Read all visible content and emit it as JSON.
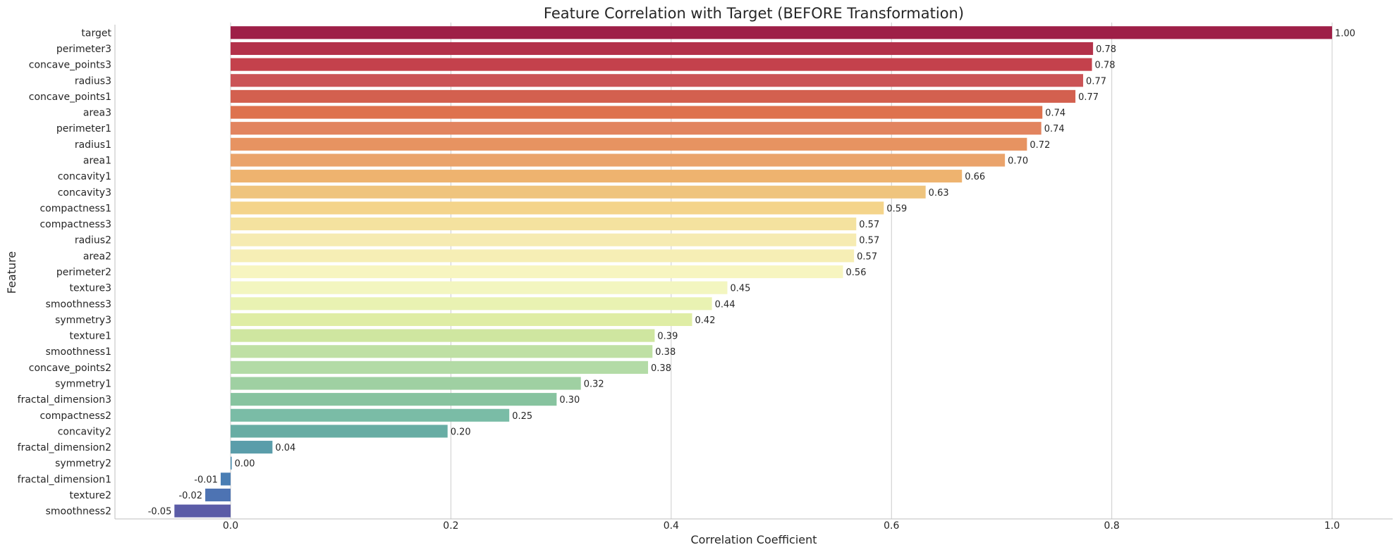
{
  "chart_data": {
    "type": "bar",
    "orientation": "horizontal",
    "title": "Feature Correlation with Target (BEFORE Transformation)",
    "xlabel": "Correlation Coefficient",
    "ylabel": "Feature",
    "xlim": [
      -0.105,
      1.055
    ],
    "xticks": [
      0.0,
      0.2,
      0.4,
      0.6,
      0.8,
      1.0
    ],
    "xtick_labels": [
      "0.0",
      "0.2",
      "0.4",
      "0.6",
      "0.8",
      "1.0"
    ],
    "grid": true,
    "categories": [
      "target",
      "perimeter3",
      "concave_points3",
      "radius3",
      "concave_points1",
      "area3",
      "perimeter1",
      "radius1",
      "area1",
      "concavity1",
      "concavity3",
      "compactness1",
      "compactness3",
      "radius2",
      "area2",
      "perimeter2",
      "texture3",
      "smoothness3",
      "symmetry3",
      "texture1",
      "smoothness1",
      "concave_points2",
      "symmetry1",
      "fractal_dimension3",
      "compactness2",
      "concavity2",
      "fractal_dimension2",
      "symmetry2",
      "fractal_dimension1",
      "texture2",
      "smoothness2"
    ],
    "values": [
      1.0,
      0.783,
      0.782,
      0.774,
      0.767,
      0.737,
      0.736,
      0.723,
      0.703,
      0.664,
      0.631,
      0.593,
      0.568,
      0.568,
      0.566,
      0.556,
      0.451,
      0.437,
      0.419,
      0.385,
      0.383,
      0.379,
      0.318,
      0.296,
      0.253,
      0.197,
      0.038,
      0.001,
      -0.009,
      -0.023,
      -0.051
    ],
    "value_labels": [
      "1.00",
      "0.78",
      "0.78",
      "0.77",
      "0.77",
      "0.74",
      "0.74",
      "0.72",
      "0.70",
      "0.66",
      "0.63",
      "0.59",
      "0.57",
      "0.57",
      "0.57",
      "0.56",
      "0.45",
      "0.44",
      "0.42",
      "0.39",
      "0.38",
      "0.38",
      "0.32",
      "0.30",
      "0.25",
      "0.20",
      "0.04",
      "0.00",
      "-0.01",
      "-0.02",
      "-0.05"
    ],
    "colors": [
      "#9e1f47",
      "#b3324a",
      "#c4414c",
      "#cb5356",
      "#d3604f",
      "#de724e",
      "#e2845f",
      "#e79361",
      "#eaa36b",
      "#eeb36f",
      "#efc47d",
      "#f4d48b",
      "#f4e29f",
      "#f6ebb2",
      "#f6eeb5",
      "#f7f5c0",
      "#f3f6c0",
      "#e9f2b2",
      "#dfeda5",
      "#cfe6a0",
      "#bfe0a4",
      "#b3dba6",
      "#9fd0a2",
      "#87c39f",
      "#7abca6",
      "#68ada4",
      "#5a9daa",
      "#4a8dae",
      "#4a7eb4",
      "#4d73b3",
      "#5b5ca7"
    ]
  }
}
